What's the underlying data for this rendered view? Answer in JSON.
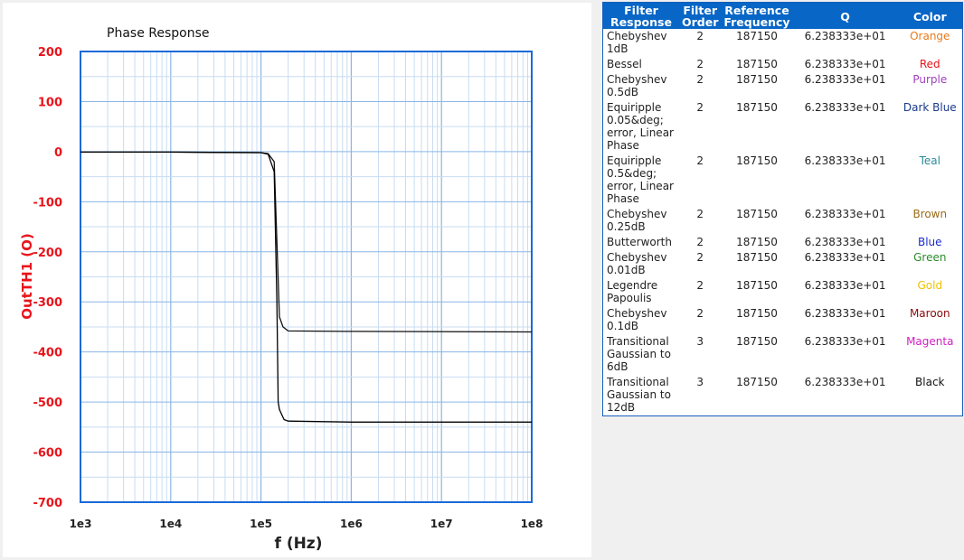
{
  "chart_data": {
    "type": "line",
    "title": "Phase Response",
    "xlabel": "f (Hz)",
    "ylabel": "OutTH1 (O)",
    "x_scale": "log",
    "xlim": [
      1000,
      100000000
    ],
    "ylim": [
      -700,
      200
    ],
    "grid": true,
    "x_ticks": [
      "1e3",
      "1e4",
      "1e5",
      "1e6",
      "1e7",
      "1e8"
    ],
    "y_ticks": [
      "200",
      "100",
      "0",
      "-100",
      "-200",
      "-300",
      "-400",
      "-500",
      "-600",
      "-700"
    ],
    "series": [
      {
        "color": "#111111",
        "x": [
          1000,
          10000,
          100000,
          120000,
          140000,
          150000,
          160000,
          175000,
          200000,
          1000000,
          100000000
        ],
        "y": [
          -1,
          -1,
          -2,
          -4,
          -20,
          -180,
          -330,
          -350,
          -358,
          -359,
          -360
        ]
      },
      {
        "color": "#000000",
        "x": [
          1000,
          10000,
          100000,
          120000,
          140000,
          150000,
          155000,
          160000,
          180000,
          200000,
          1000000,
          100000000
        ],
        "y": [
          -1,
          -1,
          -2,
          -5,
          -40,
          -300,
          -500,
          -515,
          -535,
          -538,
          -540,
          -540
        ]
      }
    ]
  },
  "table": {
    "headers": [
      "Filter Response",
      "Filter Order",
      "Reference Frequency",
      "Q",
      "Color"
    ],
    "rows": [
      {
        "response": "Chebyshev 1dB",
        "order": "2",
        "ref": "187150",
        "q": "6.238333e+01",
        "color_name": "Orange",
        "color": "#e87a1c"
      },
      {
        "response": "Bessel",
        "order": "2",
        "ref": "187150",
        "q": "6.238333e+01",
        "color_name": "Red",
        "color": "#e8141b"
      },
      {
        "response": "Chebyshev 0.5dB",
        "order": "2",
        "ref": "187150",
        "q": "6.238333e+01",
        "color_name": "Purple",
        "color": "#a040c0"
      },
      {
        "response": "Equiripple 0.05&deg; error, Linear Phase",
        "order": "2",
        "ref": "187150",
        "q": "6.238333e+01",
        "color_name": "Dark Blue",
        "color": "#1a3a8c"
      },
      {
        "response": "Equiripple 0.5&deg; error, Linear Phase",
        "order": "2",
        "ref": "187150",
        "q": "6.238333e+01",
        "color_name": "Teal",
        "color": "#2a8a9a"
      },
      {
        "response": "Chebyshev 0.25dB",
        "order": "2",
        "ref": "187150",
        "q": "6.238333e+01",
        "color_name": "Brown",
        "color": "#9a6a1a"
      },
      {
        "response": "Butterworth",
        "order": "2",
        "ref": "187150",
        "q": "6.238333e+01",
        "color_name": "Blue",
        "color": "#1a2ad0"
      },
      {
        "response": "Chebyshev 0.01dB",
        "order": "2",
        "ref": "187150",
        "q": "6.238333e+01",
        "color_name": "Green",
        "color": "#2a8a2a"
      },
      {
        "response": "Legendre Papoulis",
        "order": "2",
        "ref": "187150",
        "q": "6.238333e+01",
        "color_name": "Gold",
        "color": "#f0c000"
      },
      {
        "response": "Chebyshev 0.1dB",
        "order": "2",
        "ref": "187150",
        "q": "6.238333e+01",
        "color_name": "Maroon",
        "color": "#8a0a0a"
      },
      {
        "response": "Transitional Gaussian to 6dB",
        "order": "3",
        "ref": "187150",
        "q": "6.238333e+01",
        "color_name": "Magenta",
        "color": "#d020c0"
      },
      {
        "response": "Transitional Gaussian to 12dB",
        "order": "3",
        "ref": "187150",
        "q": "6.238333e+01",
        "color_name": "Black",
        "color": "#111111"
      }
    ]
  }
}
